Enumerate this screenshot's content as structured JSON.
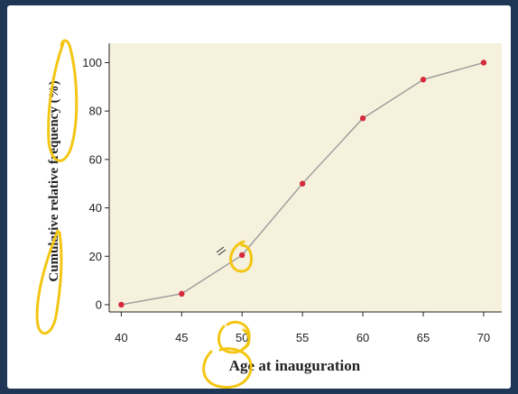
{
  "chart_data": {
    "type": "line",
    "xlabel": "Age at inauguration",
    "ylabel": "Cumulative relative frequency (%)",
    "x": [
      40,
      45,
      50,
      55,
      60,
      65,
      70
    ],
    "series": [
      {
        "values": [
          0,
          4.5,
          20.5,
          50,
          77,
          93,
          100
        ]
      }
    ],
    "xticks": [
      "40",
      "45",
      "50",
      "55",
      "60",
      "65",
      "70"
    ],
    "yticks": [
      "0",
      "20",
      "40",
      "60",
      "80",
      "100"
    ],
    "xlim": [
      39,
      71.5
    ],
    "ylim": [
      -3,
      108
    ],
    "grid": false,
    "colors": {
      "plot_background": "#f5f1dc",
      "line": "#9a9a9a",
      "marker": "#d42a3c",
      "annotation": "#f3c613"
    }
  }
}
